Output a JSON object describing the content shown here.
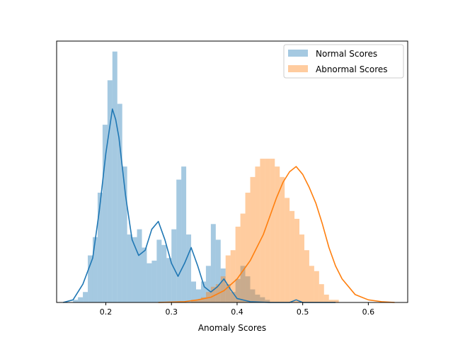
{
  "chart_data": {
    "type": "histogram+kde",
    "xlabel": "Anomaly Scores",
    "ylabel": "",
    "xlim": [
      0.125,
      0.66
    ],
    "ylim": [
      0,
      100
    ],
    "y_ticks_shown": false,
    "x_ticks": [
      0.2,
      0.3,
      0.4,
      0.5,
      0.6
    ],
    "x_tick_labels": [
      "0.2",
      "0.3",
      "0.4",
      "0.5",
      "0.6"
    ],
    "legend": {
      "position": "top-right"
    },
    "series": [
      {
        "name": "Normal Scores",
        "color": "#1f77b4",
        "bin_start": 0.15,
        "bin_width": 0.0075,
        "hist": [
          1,
          2,
          4,
          18,
          25,
          42,
          68,
          85,
          96,
          76,
          52,
          26,
          25,
          28,
          21,
          15,
          16,
          24,
          22,
          17,
          28,
          47,
          52,
          26,
          8,
          5,
          8,
          14,
          30,
          24,
          13,
          7,
          4,
          9,
          14,
          10,
          5,
          3,
          2,
          1
        ],
        "kde": [
          [
            0.135,
            0
          ],
          [
            0.15,
            1
          ],
          [
            0.165,
            7
          ],
          [
            0.18,
            17
          ],
          [
            0.19,
            35
          ],
          [
            0.2,
            57
          ],
          [
            0.21,
            74
          ],
          [
            0.215,
            70
          ],
          [
            0.22,
            63
          ],
          [
            0.23,
            41
          ],
          [
            0.24,
            24
          ],
          [
            0.25,
            18
          ],
          [
            0.26,
            20
          ],
          [
            0.27,
            28
          ],
          [
            0.28,
            31
          ],
          [
            0.29,
            24
          ],
          [
            0.3,
            15
          ],
          [
            0.31,
            10
          ],
          [
            0.32,
            15
          ],
          [
            0.33,
            21
          ],
          [
            0.34,
            14
          ],
          [
            0.35,
            6
          ],
          [
            0.36,
            4
          ],
          [
            0.37,
            6
          ],
          [
            0.38,
            9
          ],
          [
            0.39,
            5
          ],
          [
            0.4,
            1.5
          ],
          [
            0.42,
            0.3
          ],
          [
            0.45,
            0
          ],
          [
            0.48,
            0
          ],
          [
            0.49,
            1
          ],
          [
            0.5,
            0
          ],
          [
            0.55,
            0
          ]
        ]
      },
      {
        "name": "Abnormal Scores",
        "color": "#ff7f0e",
        "bin_start": 0.3,
        "bin_width": 0.0075,
        "hist": [
          0,
          0,
          0,
          0,
          1,
          1,
          2,
          4,
          6,
          7,
          10,
          18,
          20,
          29,
          34,
          42,
          48,
          52,
          55,
          55,
          55,
          52,
          48,
          40,
          35,
          32,
          26,
          20,
          14,
          12,
          7,
          3,
          1,
          1,
          0,
          0
        ],
        "kde": [
          [
            0.28,
            0
          ],
          [
            0.32,
            0.3
          ],
          [
            0.34,
            1
          ],
          [
            0.36,
            2
          ],
          [
            0.38,
            4.5
          ],
          [
            0.4,
            9
          ],
          [
            0.42,
            16
          ],
          [
            0.44,
            26
          ],
          [
            0.46,
            40
          ],
          [
            0.47,
            46
          ],
          [
            0.48,
            50
          ],
          [
            0.49,
            52
          ],
          [
            0.5,
            49
          ],
          [
            0.51,
            44
          ],
          [
            0.52,
            38
          ],
          [
            0.53,
            30
          ],
          [
            0.54,
            21
          ],
          [
            0.55,
            14
          ],
          [
            0.56,
            9
          ],
          [
            0.58,
            3
          ],
          [
            0.6,
            1
          ],
          [
            0.62,
            0.3
          ],
          [
            0.64,
            0
          ]
        ]
      }
    ]
  }
}
